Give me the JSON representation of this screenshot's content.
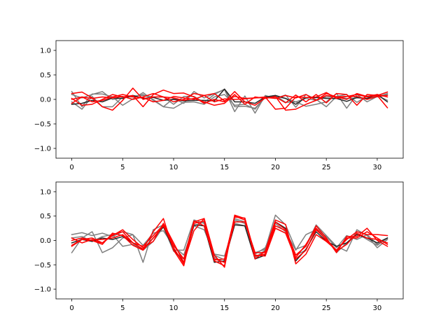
{
  "chart_data": [
    {
      "type": "line",
      "title": "",
      "xlabel": "",
      "ylabel": "",
      "xlim": [
        -1.55,
        32.55
      ],
      "ylim": [
        -1.2,
        1.2
      ],
      "xticks": [
        0,
        5,
        10,
        15,
        20,
        25,
        30
      ],
      "yticks": [
        -1.0,
        -0.5,
        0.0,
        0.5,
        1.0
      ],
      "xtick_labels": [
        "0",
        "5",
        "10",
        "15",
        "20",
        "25",
        "30"
      ],
      "ytick_labels": [
        "−1.0",
        "−0.5",
        "0.0",
        "0.5",
        "1.0"
      ],
      "grid": false,
      "x": [
        0,
        1,
        2,
        3,
        4,
        5,
        6,
        7,
        8,
        9,
        10,
        11,
        12,
        13,
        14,
        15,
        16,
        17,
        18,
        19,
        20,
        21,
        22,
        23,
        24,
        25,
        26,
        27,
        28,
        29,
        30,
        31
      ],
      "series": [
        {
          "color": "#7f7f7f",
          "values": [
            0.16,
            -0.15,
            0.11,
            0.11,
            0.05,
            -0.12,
            0.01,
            0.14,
            -0.02,
            -0.15,
            0.02,
            -0.08,
            0.16,
            0.03,
            0.12,
            0.2,
            -0.25,
            0.07,
            -0.28,
            0.08,
            0.02,
            0.09,
            -0.16,
            0.1,
            0.0,
            -0.15,
            0.06,
            0.1,
            -0.06,
            0.07,
            0.05,
            0.12
          ]
        },
        {
          "color": "#7f7f7f",
          "values": [
            -0.05,
            -0.2,
            0.06,
            -0.15,
            -0.15,
            0.05,
            0.05,
            0.1,
            0.0,
            -0.15,
            -0.18,
            -0.06,
            -0.05,
            -0.1,
            0.05,
            0.1,
            -0.12,
            -0.1,
            -0.2,
            0.05,
            0.08,
            -0.06,
            -0.05,
            -0.14,
            -0.1,
            -0.05,
            0.12,
            -0.18,
            0.1,
            -0.05,
            0.06,
            0.1
          ]
        },
        {
          "color": "#7f7f7f",
          "values": [
            0.1,
            0.03,
            0.1,
            0.16,
            0.0,
            0.03,
            0.07,
            0.08,
            0.05,
            0.05,
            -0.1,
            0.06,
            0.06,
            -0.06,
            0.1,
            0.21,
            -0.15,
            -0.14,
            -0.18,
            0.04,
            0.06,
            0.02,
            -0.05,
            0.02,
            -0.02,
            0.05,
            0.05,
            0.02,
            0.03,
            0.02,
            0.08,
            -0.02
          ]
        },
        {
          "color": "#262626",
          "values": [
            -0.1,
            -0.08,
            -0.02,
            -0.05,
            0.03,
            0.02,
            0.08,
            0.02,
            0.04,
            -0.02,
            0.0,
            -0.03,
            -0.02,
            -0.02,
            -0.03,
            0.21,
            -0.05,
            -0.05,
            -0.08,
            0.05,
            0.08,
            0.02,
            -0.1,
            0.04,
            0.04,
            0.02,
            0.02,
            -0.04,
            0.04,
            0.02,
            0.1,
            -0.05
          ]
        },
        {
          "color": "#ff0000",
          "values": [
            0.12,
            0.15,
            0.03,
            -0.15,
            -0.22,
            -0.02,
            0.23,
            0.0,
            0.05,
            0.05,
            -0.05,
            0.0,
            0.12,
            0.08,
            -0.05,
            0.01,
            0.0,
            0.01,
            0.03,
            0.05,
            -0.2,
            -0.18,
            0.05,
            0.04,
            0.05,
            0.14,
            0.02,
            0.06,
            0.1,
            0.05,
            0.08,
            -0.17
          ]
        },
        {
          "color": "#ff0000",
          "values": [
            0.02,
            -0.12,
            -0.1,
            0.0,
            0.1,
            0.05,
            0.08,
            -0.15,
            0.1,
            0.19,
            0.12,
            0.13,
            0.05,
            -0.08,
            0.0,
            -0.05,
            0.16,
            -0.05,
            -0.12,
            0.03,
            0.05,
            -0.07,
            0.09,
            -0.05,
            0.1,
            -0.07,
            0.12,
            0.1,
            -0.12,
            0.1,
            0.08,
            0.15
          ]
        },
        {
          "color": "#ff0000",
          "values": [
            -0.08,
            0.05,
            0.02,
            0.05,
            0.03,
            0.06,
            0.0,
            0.05,
            0.12,
            0.05,
            0.03,
            -0.02,
            0.02,
            -0.05,
            -0.12,
            -0.08,
            0.1,
            -0.1,
            0.05,
            0.02,
            0.06,
            -0.22,
            -0.2,
            -0.1,
            -0.02,
            0.08,
            0.05,
            0.06,
            0.06,
            0.0,
            0.06,
            0.08
          ]
        },
        {
          "color": "#ff0000",
          "values": [
            0.0,
            0.05,
            -0.05,
            -0.02,
            0.05,
            0.1,
            0.05,
            0.04,
            -0.05,
            -0.02,
            0.06,
            0.03,
            0.0,
            0.08,
            0.12,
            -0.03,
            0.06,
            0.02,
            0.03,
            0.04,
            0.02,
            0.08,
            0.03,
            0.1,
            -0.02,
            0.12,
            0.05,
            0.0,
            0.12,
            0.06,
            0.1,
            0.05
          ]
        }
      ]
    },
    {
      "type": "line",
      "title": "",
      "xlabel": "",
      "ylabel": "",
      "xlim": [
        -1.55,
        32.55
      ],
      "ylim": [
        -1.2,
        1.2
      ],
      "xticks": [
        0,
        5,
        10,
        15,
        20,
        25,
        30
      ],
      "yticks": [
        -1.0,
        -0.5,
        0.0,
        0.5,
        1.0
      ],
      "xtick_labels": [
        "0",
        "5",
        "10",
        "15",
        "20",
        "25",
        "30"
      ],
      "ytick_labels": [
        "−1.0",
        "−0.5",
        "0.0",
        "0.5",
        "1.0"
      ],
      "grid": false,
      "x": [
        0,
        1,
        2,
        3,
        4,
        5,
        6,
        7,
        8,
        9,
        10,
        11,
        12,
        13,
        14,
        15,
        16,
        17,
        18,
        19,
        20,
        21,
        22,
        23,
        24,
        25,
        26,
        27,
        28,
        29,
        30,
        31
      ],
      "series": [
        {
          "color": "#7f7f7f",
          "values": [
            0.12,
            0.16,
            0.1,
            0.15,
            0.08,
            0.18,
            0.12,
            -0.45,
            0.22,
            0.32,
            -0.2,
            -0.2,
            0.42,
            0.35,
            -0.35,
            -0.45,
            0.45,
            0.38,
            -0.25,
            -0.18,
            0.52,
            0.32,
            -0.18,
            -0.1,
            0.32,
            0.1,
            -0.12,
            -0.22,
            0.22,
            0.1,
            -0.15,
            0.02
          ]
        },
        {
          "color": "#7f7f7f",
          "values": [
            -0.25,
            0.05,
            0.18,
            -0.25,
            -0.15,
            0.05,
            0.12,
            -0.1,
            0.15,
            0.2,
            -0.12,
            -0.3,
            0.3,
            0.22,
            -0.28,
            -0.32,
            0.35,
            0.3,
            -0.35,
            -0.2,
            0.25,
            0.15,
            -0.3,
            -0.2,
            0.25,
            0.05,
            -0.25,
            -0.05,
            0.15,
            0.02,
            -0.1,
            0.05
          ]
        },
        {
          "color": "#7f7f7f",
          "values": [
            0.05,
            0.08,
            -0.02,
            0.08,
            0.12,
            -0.12,
            -0.08,
            -0.2,
            -0.02,
            0.28,
            -0.22,
            -0.38,
            0.3,
            0.38,
            -0.3,
            -0.4,
            0.42,
            0.35,
            -0.28,
            -0.15,
            0.35,
            0.18,
            -0.2,
            0.12,
            0.22,
            0.08,
            -0.15,
            0.1,
            0.02,
            0.12,
            -0.08,
            0.05
          ]
        },
        {
          "color": "#262626",
          "values": [
            -0.05,
            0.02,
            -0.02,
            0.05,
            0.02,
            0.08,
            -0.05,
            -0.18,
            0.05,
            0.28,
            -0.18,
            -0.45,
            0.32,
            0.3,
            -0.45,
            -0.42,
            0.32,
            0.3,
            -0.38,
            -0.3,
            0.38,
            0.25,
            -0.42,
            -0.18,
            0.18,
            -0.02,
            -0.12,
            -0.05,
            0.12,
            0.05,
            -0.05,
            0.05
          ]
        },
        {
          "color": "#ff0000",
          "values": [
            0.0,
            0.05,
            0.0,
            -0.05,
            0.12,
            0.18,
            -0.05,
            -0.18,
            0.18,
            0.45,
            -0.2,
            -0.52,
            0.38,
            0.45,
            -0.42,
            -0.52,
            0.52,
            0.45,
            -0.38,
            -0.22,
            0.42,
            0.33,
            -0.48,
            -0.28,
            0.12,
            -0.02,
            -0.2,
            0.02,
            0.18,
            0.12,
            0.12,
            0.1
          ]
        },
        {
          "color": "#ff0000",
          "values": [
            -0.1,
            0.02,
            0.05,
            -0.05,
            0.1,
            0.22,
            0.02,
            -0.15,
            -0.02,
            0.35,
            -0.05,
            -0.45,
            0.2,
            0.45,
            -0.3,
            -0.55,
            0.5,
            0.42,
            -0.32,
            -0.28,
            0.38,
            0.22,
            -0.3,
            -0.12,
            0.3,
            0.05,
            -0.25,
            0.08,
            0.08,
            0.25,
            0.0,
            -0.12
          ]
        },
        {
          "color": "#ff0000",
          "values": [
            -0.12,
            0.02,
            0.0,
            -0.08,
            0.15,
            0.1,
            -0.1,
            -0.2,
            0.05,
            0.3,
            -0.15,
            -0.48,
            0.35,
            0.4,
            -0.4,
            -0.38,
            0.48,
            0.46,
            -0.3,
            -0.32,
            0.25,
            0.15,
            -0.38,
            -0.2,
            0.22,
            0.02,
            -0.2,
            0.05,
            0.05,
            0.18,
            0.05,
            -0.08
          ]
        },
        {
          "color": "#ff0000",
          "values": [
            0.05,
            -0.05,
            0.02,
            0.02,
            0.05,
            0.12,
            -0.05,
            -0.12,
            0.1,
            0.32,
            -0.1,
            -0.38,
            0.4,
            0.3,
            -0.38,
            -0.45,
            0.38,
            0.38,
            -0.25,
            -0.25,
            0.3,
            0.2,
            -0.35,
            -0.08,
            0.25,
            0.0,
            -0.22,
            -0.08,
            0.15,
            0.05,
            0.02,
            -0.05
          ]
        }
      ]
    }
  ]
}
